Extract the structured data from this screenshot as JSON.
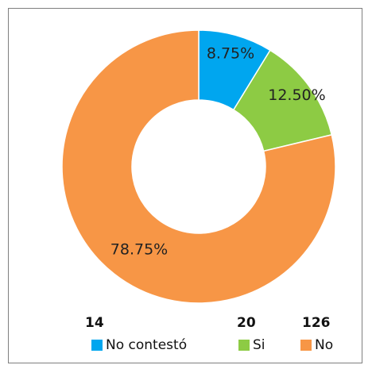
{
  "chart_data": {
    "type": "pie",
    "donut": true,
    "categories": [
      "No contestó",
      "Si",
      "No"
    ],
    "values": [
      14,
      20,
      126
    ],
    "percent_labels": [
      "8.75%",
      "12.50%",
      "78.75%"
    ],
    "colors": [
      "#00a6ef",
      "#8dcb44",
      "#f79646"
    ],
    "legend_counts": [
      "14",
      "20",
      "126"
    ],
    "legend_placement": "bottom",
    "title": ""
  }
}
